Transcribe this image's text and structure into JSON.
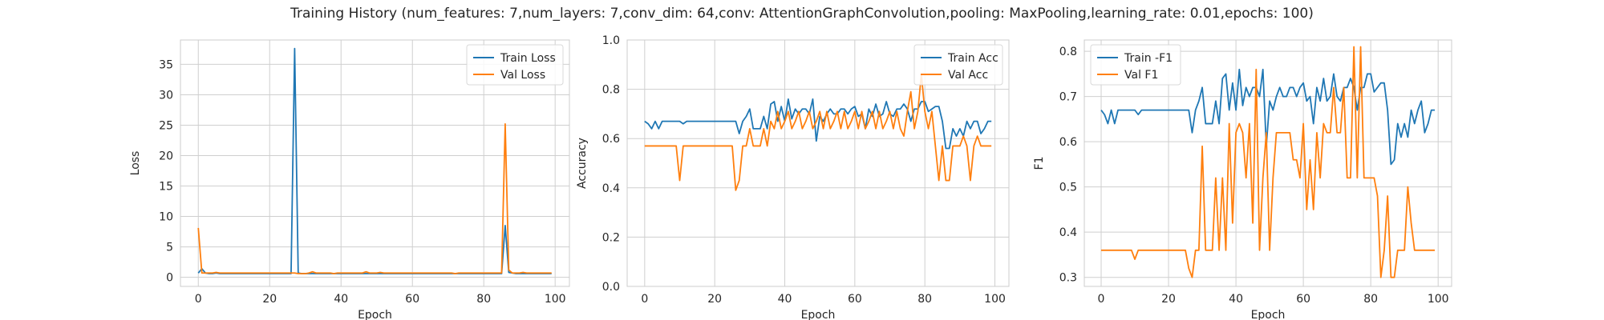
{
  "title": "Training History (num_features: 7,num_layers: 7,conv_dim: 64,conv: AttentionGraphConvolution,pooling: MaxPooling,learning_rate: 0.01,epochs: 100)",
  "colors": {
    "train": "#1f77b4",
    "val": "#ff7f0e"
  },
  "chart_data": [
    {
      "type": "line",
      "xlabel": "Epoch",
      "ylabel": "Loss",
      "xlim": [
        -5,
        104
      ],
      "ylim": [
        -1.5,
        39
      ],
      "xticks": [
        0,
        20,
        40,
        60,
        80,
        100
      ],
      "yticks": [
        0,
        5,
        10,
        15,
        20,
        25,
        30,
        35
      ],
      "legend_position": "top-right",
      "series": [
        {
          "name": "Train Loss",
          "color": "#1f77b4",
          "values": [
            0.7,
            1.4,
            0.7,
            0.6,
            0.6,
            0.7,
            0.6,
            0.6,
            0.6,
            0.6,
            0.6,
            0.6,
            0.6,
            0.6,
            0.6,
            0.6,
            0.6,
            0.6,
            0.6,
            0.6,
            0.6,
            0.6,
            0.6,
            0.6,
            0.6,
            0.6,
            0.6,
            37.6,
            0.7,
            0.6,
            0.6,
            0.6,
            0.6,
            0.6,
            0.6,
            0.6,
            0.6,
            0.6,
            0.6,
            0.6,
            0.6,
            0.6,
            0.6,
            0.6,
            0.6,
            0.6,
            0.6,
            0.6,
            0.6,
            0.6,
            0.6,
            0.6,
            0.6,
            0.6,
            0.6,
            0.6,
            0.6,
            0.6,
            0.6,
            0.6,
            0.6,
            0.6,
            0.6,
            0.6,
            0.6,
            0.6,
            0.6,
            0.6,
            0.6,
            0.6,
            0.6,
            0.6,
            0.6,
            0.6,
            0.6,
            0.6,
            0.6,
            0.6,
            0.6,
            0.6,
            0.6,
            0.6,
            0.6,
            0.6,
            0.6,
            0.6,
            8.5,
            0.8,
            0.7,
            0.6,
            0.6,
            0.6,
            0.6,
            0.6,
            0.6,
            0.6,
            0.6,
            0.6,
            0.6,
            0.6
          ]
        },
        {
          "name": "Val Loss",
          "color": "#ff7f0e",
          "values": [
            8.1,
            0.7,
            0.7,
            0.7,
            0.7,
            0.8,
            0.7,
            0.7,
            0.7,
            0.7,
            0.7,
            0.7,
            0.7,
            0.7,
            0.7,
            0.7,
            0.7,
            0.7,
            0.7,
            0.7,
            0.7,
            0.7,
            0.7,
            0.7,
            0.7,
            0.7,
            0.7,
            0.7,
            0.6,
            0.6,
            0.6,
            0.7,
            0.9,
            0.7,
            0.7,
            0.7,
            0.7,
            0.7,
            0.6,
            0.7,
            0.7,
            0.7,
            0.7,
            0.7,
            0.7,
            0.7,
            0.7,
            0.9,
            0.7,
            0.7,
            0.7,
            0.8,
            0.7,
            0.7,
            0.7,
            0.7,
            0.7,
            0.7,
            0.7,
            0.7,
            0.7,
            0.7,
            0.7,
            0.7,
            0.7,
            0.7,
            0.7,
            0.7,
            0.7,
            0.7,
            0.7,
            0.7,
            0.6,
            0.7,
            0.7,
            0.7,
            0.7,
            0.7,
            0.7,
            0.7,
            0.7,
            0.7,
            0.7,
            0.7,
            0.7,
            0.7,
            25.2,
            1.2,
            0.7,
            0.7,
            0.7,
            0.8,
            0.7,
            0.7,
            0.7,
            0.7,
            0.7,
            0.7,
            0.7,
            0.7
          ]
        }
      ]
    },
    {
      "type": "line",
      "xlabel": "Epoch",
      "ylabel": "Accuracy",
      "xlim": [
        -5,
        104
      ],
      "ylim": [
        0.0,
        1.0
      ],
      "xticks": [
        0,
        20,
        40,
        60,
        80,
        100
      ],
      "yticks": [
        0.0,
        0.2,
        0.4,
        0.6,
        0.8,
        1.0
      ],
      "legend_position": "top-right",
      "series": [
        {
          "name": "Train Acc",
          "color": "#1f77b4",
          "values": [
            0.67,
            0.66,
            0.64,
            0.67,
            0.64,
            0.67,
            0.67,
            0.67,
            0.67,
            0.67,
            0.67,
            0.66,
            0.67,
            0.67,
            0.67,
            0.67,
            0.67,
            0.67,
            0.67,
            0.67,
            0.67,
            0.67,
            0.67,
            0.67,
            0.67,
            0.67,
            0.67,
            0.62,
            0.67,
            0.69,
            0.72,
            0.64,
            0.64,
            0.64,
            0.69,
            0.64,
            0.74,
            0.75,
            0.67,
            0.73,
            0.67,
            0.76,
            0.68,
            0.72,
            0.7,
            0.72,
            0.72,
            0.7,
            0.76,
            0.59,
            0.69,
            0.67,
            0.7,
            0.72,
            0.7,
            0.7,
            0.72,
            0.72,
            0.7,
            0.72,
            0.73,
            0.69,
            0.7,
            0.64,
            0.72,
            0.69,
            0.74,
            0.69,
            0.7,
            0.75,
            0.7,
            0.69,
            0.72,
            0.72,
            0.74,
            0.72,
            0.67,
            0.72,
            0.72,
            0.75,
            0.75,
            0.71,
            0.72,
            0.73,
            0.73,
            0.67,
            0.56,
            0.56,
            0.64,
            0.61,
            0.64,
            0.61,
            0.67,
            0.64,
            0.67,
            0.67,
            0.62,
            0.64,
            0.67,
            0.67
          ]
        },
        {
          "name": "Val Acc",
          "color": "#ff7f0e",
          "values": [
            0.57,
            0.57,
            0.57,
            0.57,
            0.57,
            0.57,
            0.57,
            0.57,
            0.57,
            0.57,
            0.43,
            0.57,
            0.57,
            0.57,
            0.57,
            0.57,
            0.57,
            0.57,
            0.57,
            0.57,
            0.57,
            0.57,
            0.57,
            0.57,
            0.57,
            0.57,
            0.39,
            0.43,
            0.57,
            0.57,
            0.64,
            0.57,
            0.57,
            0.57,
            0.64,
            0.57,
            0.67,
            0.64,
            0.71,
            0.64,
            0.67,
            0.71,
            0.64,
            0.67,
            0.71,
            0.64,
            0.67,
            0.71,
            0.64,
            0.67,
            0.71,
            0.64,
            0.71,
            0.64,
            0.67,
            0.71,
            0.64,
            0.71,
            0.64,
            0.67,
            0.71,
            0.64,
            0.71,
            0.64,
            0.67,
            0.71,
            0.64,
            0.71,
            0.64,
            0.67,
            0.71,
            0.64,
            0.71,
            0.64,
            0.61,
            0.71,
            0.79,
            0.64,
            0.71,
            0.86,
            0.71,
            0.64,
            0.71,
            0.57,
            0.43,
            0.57,
            0.43,
            0.43,
            0.57,
            0.57,
            0.57,
            0.61,
            0.57,
            0.43,
            0.57,
            0.61,
            0.57,
            0.57,
            0.57,
            0.57
          ]
        }
      ]
    },
    {
      "type": "line",
      "xlabel": "Epoch",
      "ylabel": "F1",
      "xlim": [
        -5,
        104
      ],
      "ylim": [
        0.28,
        0.825
      ],
      "xticks": [
        0,
        20,
        40,
        60,
        80,
        100
      ],
      "yticks": [
        0.3,
        0.4,
        0.5,
        0.6,
        0.7,
        0.8
      ],
      "legend_position": "top-left",
      "series": [
        {
          "name": "Train -F1",
          "color": "#1f77b4",
          "values": [
            0.67,
            0.66,
            0.64,
            0.67,
            0.64,
            0.67,
            0.67,
            0.67,
            0.67,
            0.67,
            0.67,
            0.66,
            0.67,
            0.67,
            0.67,
            0.67,
            0.67,
            0.67,
            0.67,
            0.67,
            0.67,
            0.67,
            0.67,
            0.67,
            0.67,
            0.67,
            0.67,
            0.62,
            0.67,
            0.69,
            0.72,
            0.64,
            0.64,
            0.64,
            0.69,
            0.64,
            0.74,
            0.75,
            0.67,
            0.73,
            0.67,
            0.76,
            0.68,
            0.72,
            0.7,
            0.72,
            0.72,
            0.7,
            0.76,
            0.59,
            0.69,
            0.67,
            0.7,
            0.72,
            0.7,
            0.7,
            0.72,
            0.72,
            0.7,
            0.72,
            0.73,
            0.69,
            0.7,
            0.64,
            0.72,
            0.69,
            0.74,
            0.69,
            0.7,
            0.75,
            0.7,
            0.69,
            0.72,
            0.72,
            0.74,
            0.72,
            0.67,
            0.72,
            0.72,
            0.75,
            0.75,
            0.71,
            0.72,
            0.73,
            0.73,
            0.67,
            0.55,
            0.56,
            0.64,
            0.61,
            0.64,
            0.61,
            0.67,
            0.64,
            0.67,
            0.69,
            0.62,
            0.64,
            0.67,
            0.67
          ]
        },
        {
          "name": "Val F1",
          "color": "#ff7f0e",
          "values": [
            0.36,
            0.36,
            0.36,
            0.36,
            0.36,
            0.36,
            0.36,
            0.36,
            0.36,
            0.36,
            0.34,
            0.36,
            0.36,
            0.36,
            0.36,
            0.36,
            0.36,
            0.36,
            0.36,
            0.36,
            0.36,
            0.36,
            0.36,
            0.36,
            0.36,
            0.36,
            0.32,
            0.3,
            0.36,
            0.36,
            0.59,
            0.36,
            0.36,
            0.36,
            0.52,
            0.36,
            0.52,
            0.36,
            0.64,
            0.42,
            0.62,
            0.64,
            0.62,
            0.52,
            0.64,
            0.42,
            0.76,
            0.36,
            0.52,
            0.62,
            0.36,
            0.52,
            0.62,
            0.62,
            0.62,
            0.62,
            0.62,
            0.56,
            0.56,
            0.52,
            0.64,
            0.45,
            0.56,
            0.45,
            0.62,
            0.52,
            0.64,
            0.62,
            0.62,
            0.72,
            0.62,
            0.62,
            0.72,
            0.52,
            0.52,
            0.81,
            0.52,
            0.81,
            0.52,
            0.52,
            0.52,
            0.52,
            0.48,
            0.3,
            0.36,
            0.48,
            0.3,
            0.3,
            0.36,
            0.36,
            0.36,
            0.5,
            0.42,
            0.36,
            0.36,
            0.36,
            0.36,
            0.36,
            0.36,
            0.36
          ]
        }
      ]
    }
  ]
}
